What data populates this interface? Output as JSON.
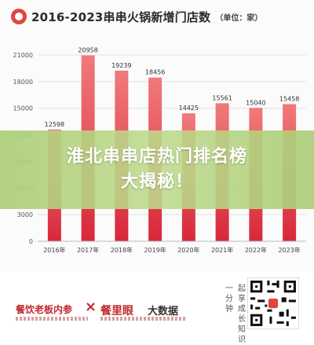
{
  "header": {
    "title": "2016-2023串串火锅新增门店数",
    "unit": "（单位：家）"
  },
  "colors": {
    "bar_top": "#f07a7a",
    "bar_bottom": "#d8283a",
    "accent": "#e0463f",
    "banner": "#b5d58a"
  },
  "chart_data": {
    "type": "bar",
    "categories": [
      "2016年",
      "2017年",
      "2018年",
      "2019年",
      "2020年",
      "2021年",
      "2022年",
      "2023年"
    ],
    "values": [
      12598,
      20958,
      19239,
      18456,
      14425,
      15561,
      15040,
      15458
    ],
    "ylim": [
      0,
      21000
    ],
    "yticks": [
      "0",
      "3000",
      "6000",
      "9000",
      "12000",
      "15000",
      "18000",
      "21000"
    ],
    "grid": true
  },
  "banner": {
    "line1": "淮北串串店热门排名榜",
    "line2": "大揭秘！"
  },
  "footer": {
    "brand1": "餐饮老板内参",
    "brand_sep": "×",
    "brand2_logo": "餐里眼",
    "brand2_text": "大数据",
    "vertical_text_1": "一分钟",
    "vertical_text_2": "起享成长知识"
  }
}
